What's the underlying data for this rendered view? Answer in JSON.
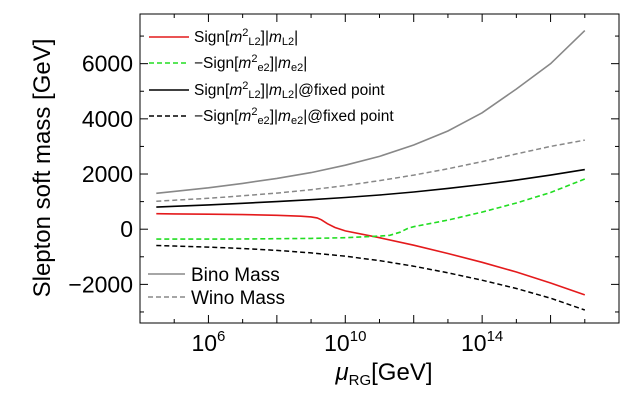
{
  "chart_data": {
    "type": "line",
    "xscale": "log",
    "xlim": [
      10000,
      1e+18
    ],
    "ylim": [
      -3400,
      7800
    ],
    "xlabel": {
      "base": "μ",
      "sub": "RG",
      "unit": "[GeV]"
    },
    "ylabel": "Slepton soft mass [GeV]",
    "grid": false,
    "legend_position": "top-left",
    "x_ticks": [
      {
        "value": 1000000.0,
        "base": "10",
        "exp": "6"
      },
      {
        "value": 10000000000.0,
        "base": "10",
        "exp": "10"
      },
      {
        "value": 100000000000000.0,
        "base": "10",
        "exp": "14"
      }
    ],
    "y_ticks": [
      {
        "value": -2000,
        "label": "−2000"
      },
      {
        "value": 0,
        "label": "0"
      },
      {
        "value": 2000,
        "label": "2000"
      },
      {
        "value": 4000,
        "label": "4000"
      },
      {
        "value": 6000,
        "label": "6000"
      }
    ],
    "series": [
      {
        "id": "s1",
        "legend": {
          "pre": "Sign[",
          "m": "m",
          "sup": "2",
          "sub1": "L2",
          "mid": "]|",
          "m2": "m",
          "sub2": "L2",
          "post": "|"
        },
        "color": "#e41a1c",
        "dash": "solid",
        "width": 1.6,
        "x": [
          30000.0,
          100000.0,
          1000000.0,
          10000000.0,
          100000000.0,
          500000000.0,
          1000000000.0,
          1500000000.0,
          2000000000.0,
          3000000000.0,
          5000000000.0,
          10000000000.0,
          100000000000.0,
          1000000000000.0,
          10000000000000.0,
          100000000000000.0,
          1000000000000000.0,
          1e+16,
          1e+17
        ],
        "y": [
          560,
          555,
          545,
          530,
          505,
          470,
          445,
          410,
          340,
          200,
          60,
          -60,
          -310,
          -580,
          -880,
          -1200,
          -1550,
          -1950,
          -2380
        ]
      },
      {
        "id": "s2",
        "legend": {
          "pre": "−Sign[",
          "m": "m",
          "sup": "2",
          "sub1": "e2",
          "mid": "]|",
          "m2": "m",
          "sub2": "e2",
          "post": "|"
        },
        "color": "#22dd22",
        "dash": "5,3",
        "width": 1.6,
        "x": [
          30000.0,
          100000.0,
          1000000.0,
          10000000.0,
          100000000.0,
          1000000000.0,
          10000000000.0,
          100000000000.0,
          200000000000.0,
          400000000000.0,
          700000000000.0,
          1000000000000.0,
          10000000000000.0,
          100000000000000.0,
          1000000000000000.0,
          1e+16,
          1e+17
        ],
        "y": [
          -360,
          -360,
          -360,
          -355,
          -345,
          -335,
          -310,
          -250,
          -220,
          -110,
          40,
          90,
          330,
          620,
          950,
          1330,
          1820
        ]
      },
      {
        "id": "s3",
        "legend": {
          "pre": "Sign[",
          "m": "m",
          "sup": "2",
          "sub1": "L2",
          "mid": "]|",
          "m2": "m",
          "sub2": "L2",
          "post": "|@fixed point"
        },
        "color": "#000000",
        "dash": "solid",
        "width": 1.6,
        "x": [
          30000.0,
          100000.0,
          1000000.0,
          10000000.0,
          100000000.0,
          1000000000.0,
          10000000000.0,
          100000000000.0,
          1000000000000.0,
          10000000000000.0,
          100000000000000.0,
          1000000000000000.0,
          1e+16,
          1e+17
        ],
        "y": [
          800,
          830,
          880,
          940,
          1000,
          1070,
          1150,
          1240,
          1350,
          1480,
          1620,
          1780,
          1960,
          2160
        ]
      },
      {
        "id": "s4",
        "legend": {
          "pre": "−Sign[",
          "m": "m",
          "sup": "2",
          "sub1": "e2",
          "mid": "]|",
          "m2": "m",
          "sub2": "e2",
          "post": "|@fixed point"
        },
        "color": "#000000",
        "dash": "5,3",
        "width": 1.5,
        "x": [
          30000.0,
          100000.0,
          1000000.0,
          10000000.0,
          100000000.0,
          1000000000.0,
          10000000000.0,
          100000000000.0,
          1000000000000.0,
          10000000000000.0,
          100000000000000.0,
          1000000000000000.0,
          1e+16,
          1e+17
        ],
        "y": [
          -590,
          -610,
          -650,
          -700,
          -770,
          -860,
          -980,
          -1140,
          -1340,
          -1580,
          -1850,
          -2150,
          -2500,
          -2930
        ]
      },
      {
        "id": "bino",
        "legend_text": "Bino Mass",
        "color": "#888888",
        "dash": "solid",
        "width": 1.6,
        "x": [
          30000.0,
          100000.0,
          1000000.0,
          10000000.0,
          100000000.0,
          1000000000.0,
          10000000000.0,
          100000000000.0,
          1000000000000.0,
          10000000000000.0,
          100000000000000.0,
          1000000000000000.0,
          1e+16,
          1e+17
        ],
        "y": [
          1300,
          1370,
          1500,
          1660,
          1840,
          2050,
          2320,
          2640,
          3050,
          3560,
          4220,
          5080,
          6000,
          7200
        ]
      },
      {
        "id": "wino",
        "legend_text": "Wino Mass",
        "color": "#888888",
        "dash": "5,3",
        "width": 1.5,
        "x": [
          30000.0,
          100000.0,
          1000000.0,
          10000000.0,
          100000000.0,
          1000000000.0,
          10000000000.0,
          100000000000.0,
          1000000000000.0,
          10000000000000.0,
          100000000000000.0,
          1000000000000000.0,
          1e+16,
          1e+17
        ],
        "y": [
          1010,
          1050,
          1120,
          1210,
          1310,
          1430,
          1580,
          1760,
          1960,
          2190,
          2450,
          2730,
          3000,
          3230
        ]
      }
    ]
  }
}
